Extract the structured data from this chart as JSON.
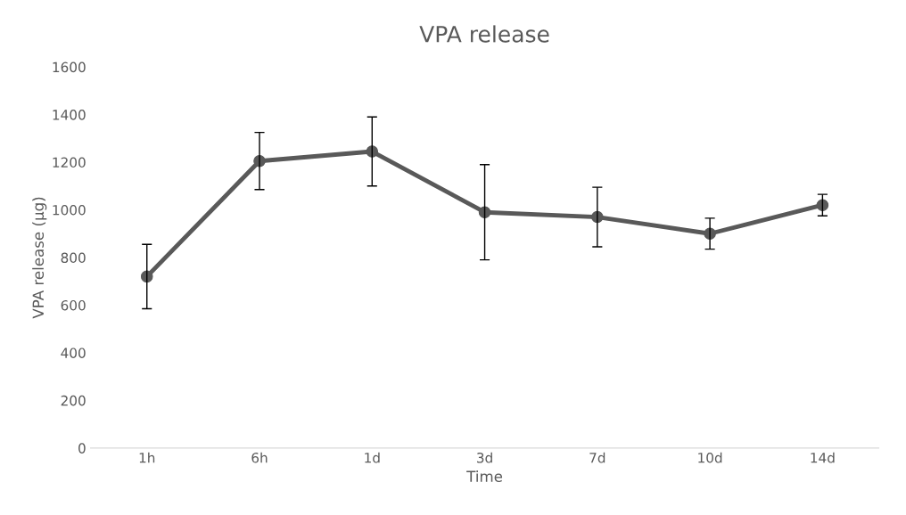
{
  "chart_data": {
    "type": "line",
    "title": "VPA release",
    "xlabel": "Time",
    "ylabel": "VPA release (µg)",
    "categories": [
      "1h",
      "6h",
      "1d",
      "3d",
      "7d",
      "10d",
      "14d"
    ],
    "values": [
      720,
      1205,
      1245,
      990,
      970,
      900,
      1020
    ],
    "errors": [
      135,
      120,
      145,
      200,
      125,
      65,
      45
    ],
    "color": "#595959",
    "marker": "circle",
    "line_style": "solid",
    "ylim": [
      0,
      1600
    ],
    "yticks": [
      0,
      200,
      400,
      600,
      800,
      1000,
      1200,
      1400,
      1600
    ],
    "grid": false
  }
}
